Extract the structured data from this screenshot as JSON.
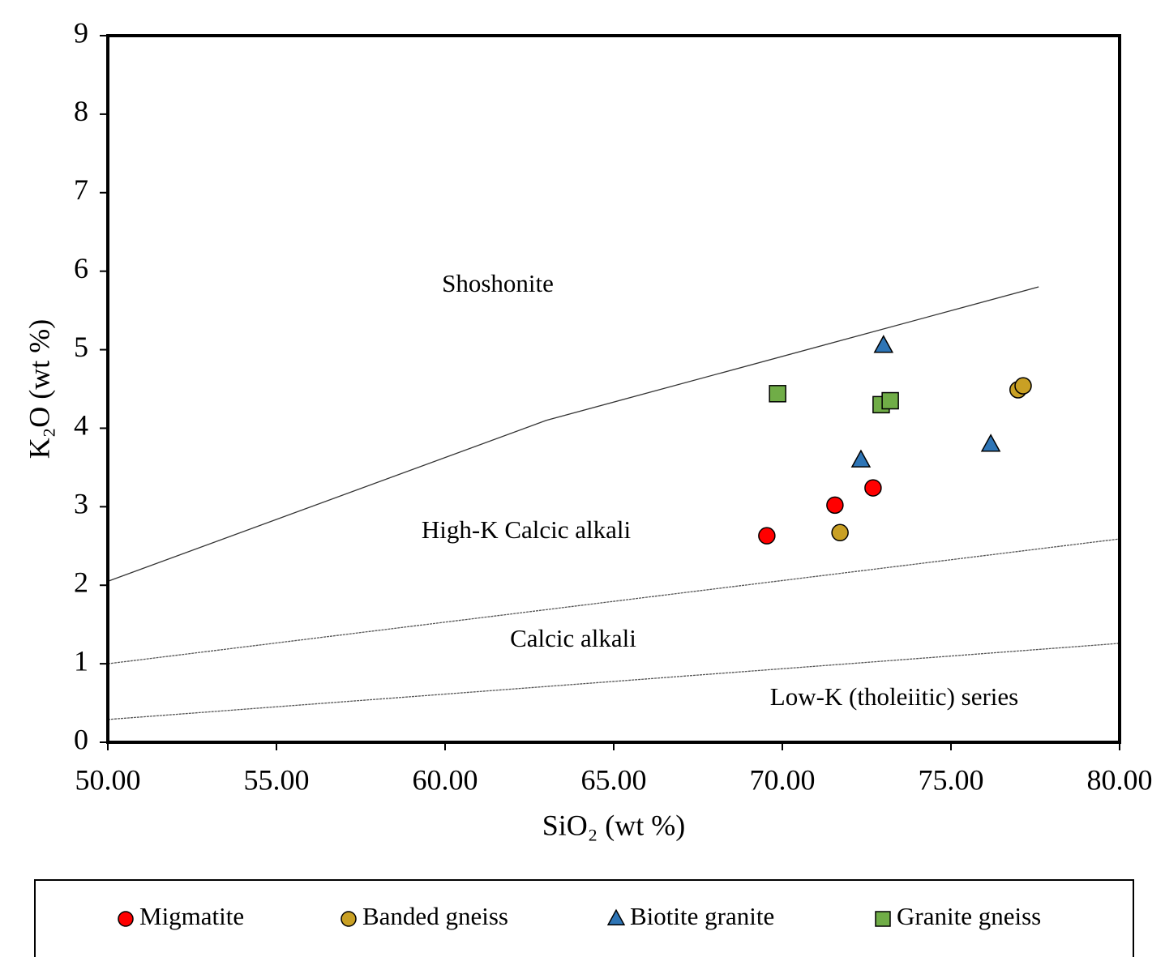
{
  "chart_data": {
    "type": "scatter",
    "x_label": "SiO₂ (wt %)",
    "y_label": "K₂O (wt %)",
    "xlim": [
      50,
      80
    ],
    "ylim": [
      0,
      9
    ],
    "xticks": [
      {
        "value": 50,
        "label": "50.00"
      },
      {
        "value": 55,
        "label": "55.00"
      },
      {
        "value": 60,
        "label": "60.00"
      },
      {
        "value": 65,
        "label": "65.00"
      },
      {
        "value": 70,
        "label": "70.00"
      },
      {
        "value": 75,
        "label": "75.00"
      },
      {
        "value": 80,
        "label": "80.00"
      }
    ],
    "yticks": [
      0,
      1,
      2,
      3,
      4,
      5,
      6,
      7,
      8,
      9
    ],
    "grid": false,
    "legend": "bottom",
    "series": [
      {
        "name": "Migmatite",
        "color": "#ff0000",
        "marker": "circle",
        "x": [
          69.54,
          71.56,
          72.69
        ],
        "values": [
          2.63,
          3.02,
          3.24
        ]
      },
      {
        "name": "Banded gneiss",
        "color": "#c9a024",
        "marker": "circle",
        "x": [
          71.71,
          76.99,
          77.14
        ],
        "values": [
          2.67,
          4.49,
          4.54
        ]
      },
      {
        "name": "Biotite granite",
        "color": "#2e75b6",
        "marker": "triangle",
        "x": [
          73.0,
          72.33,
          76.18
        ],
        "values": [
          5.05,
          3.59,
          3.79
        ]
      },
      {
        "name": "Granite gneiss",
        "color": "#70ad47",
        "marker": "square",
        "x": [
          69.86,
          72.93,
          73.2
        ],
        "values": [
          4.44,
          4.3,
          4.35
        ]
      }
    ],
    "boundaries": [
      {
        "x": [
          50,
          63,
          77.6
        ],
        "y": [
          2.05,
          4.1,
          5.8
        ],
        "dashed": false
      },
      {
        "x": [
          50,
          80
        ],
        "y": [
          1.0,
          2.59
        ],
        "dashed": true
      },
      {
        "x": [
          50,
          80
        ],
        "y": [
          0.29,
          1.26
        ],
        "dashed": true
      }
    ],
    "annotations": [
      "Shoshonite",
      "High-K Calcic alkali",
      "Calcic alkali",
      "Low-K (tholeiitic) series"
    ]
  }
}
